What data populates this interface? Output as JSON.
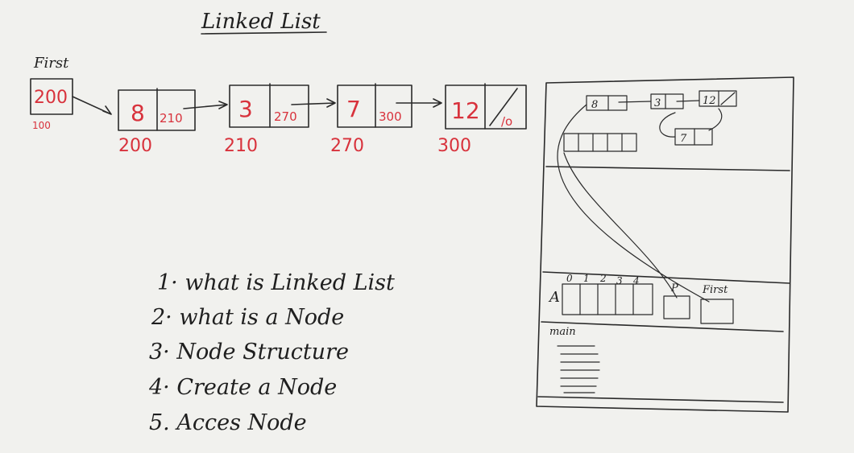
{
  "title": "Linked List",
  "first": {
    "label": "First",
    "value": "200",
    "address": "100"
  },
  "nodes": [
    {
      "data": "8",
      "next": "210",
      "address": "200"
    },
    {
      "data": "3",
      "next": "270",
      "address": "210"
    },
    {
      "data": "7",
      "next": "300",
      "address": "270"
    },
    {
      "data": "12",
      "next": "/o",
      "address": "300"
    }
  ],
  "topics": [
    "1· what is Linked List",
    "2· what is a Node",
    "3· Node Structure",
    "4· Create a Node",
    "5. Acces Node"
  ],
  "memory": {
    "heap_nodes": [
      "8",
      "3",
      "12",
      "7"
    ],
    "array_label": "A",
    "array_indices": [
      "0",
      "1",
      "2",
      "3",
      "4"
    ],
    "pointer_p": "P",
    "pointer_first": "First",
    "main_label": "main"
  },
  "colors": {
    "board": "#f1f1ee",
    "ink": "#2a2a2a",
    "red_marker": "#d8323c"
  }
}
